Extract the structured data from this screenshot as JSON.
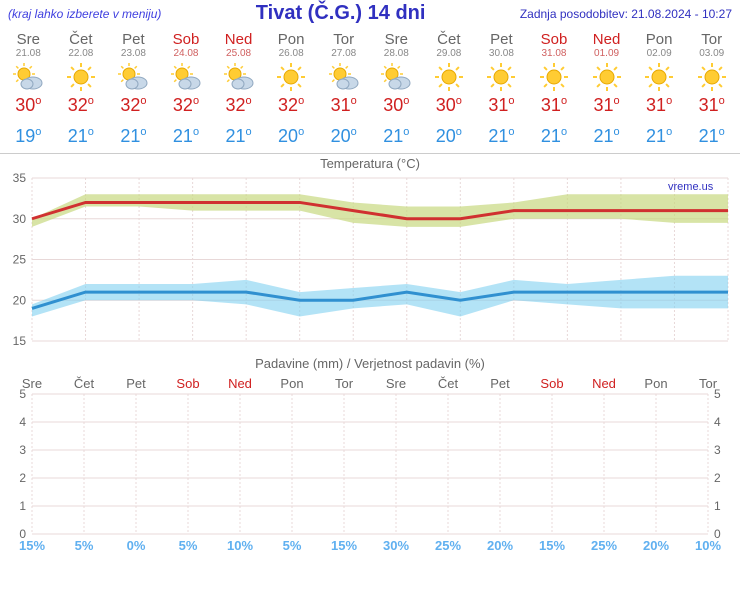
{
  "header": {
    "menu_note": "(kraj lahko izberete v meniju)",
    "title": "Tivat (Č.G.) 14 dni",
    "updated": "Zadnja posodobitev: 21.08.2024 - 10:27"
  },
  "days": [
    {
      "dow": "Sre",
      "date": "21.08",
      "hi": 30,
      "lo": 19,
      "icon": "sun-cloud",
      "weekend": false
    },
    {
      "dow": "Čet",
      "date": "22.08",
      "hi": 32,
      "lo": 21,
      "icon": "sun",
      "weekend": false
    },
    {
      "dow": "Pet",
      "date": "23.08",
      "hi": 32,
      "lo": 21,
      "icon": "sun-cloud",
      "weekend": false
    },
    {
      "dow": "Sob",
      "date": "24.08",
      "hi": 32,
      "lo": 21,
      "icon": "sun-cloud",
      "weekend": true
    },
    {
      "dow": "Ned",
      "date": "25.08",
      "hi": 32,
      "lo": 21,
      "icon": "sun-cloud",
      "weekend": true
    },
    {
      "dow": "Pon",
      "date": "26.08",
      "hi": 32,
      "lo": 20,
      "icon": "sun",
      "weekend": false
    },
    {
      "dow": "Tor",
      "date": "27.08",
      "hi": 31,
      "lo": 20,
      "icon": "sun-cloud",
      "weekend": false
    },
    {
      "dow": "Sre",
      "date": "28.08",
      "hi": 30,
      "lo": 21,
      "icon": "sun-cloud",
      "weekend": false
    },
    {
      "dow": "Čet",
      "date": "29.08",
      "hi": 30,
      "lo": 20,
      "icon": "sun",
      "weekend": false
    },
    {
      "dow": "Pet",
      "date": "30.08",
      "hi": 31,
      "lo": 21,
      "icon": "sun",
      "weekend": false
    },
    {
      "dow": "Sob",
      "date": "31.08",
      "hi": 31,
      "lo": 21,
      "icon": "sun",
      "weekend": true
    },
    {
      "dow": "Ned",
      "date": "01.09",
      "hi": 31,
      "lo": 21,
      "icon": "sun",
      "weekend": true
    },
    {
      "dow": "Pon",
      "date": "02.09",
      "hi": 31,
      "lo": 21,
      "icon": "sun",
      "weekend": false
    },
    {
      "dow": "Tor",
      "date": "03.09",
      "hi": 31,
      "lo": 21,
      "icon": "sun",
      "weekend": false
    }
  ],
  "temp_chart": {
    "title": "Temperatura (°C)",
    "ylim": [
      15,
      35
    ],
    "ytick_step": 5,
    "watermark": "vreme.us",
    "hi_series": [
      30,
      32,
      32,
      32,
      32,
      32,
      31,
      30,
      30,
      31,
      31,
      31,
      31,
      31
    ],
    "hi_upper": [
      30,
      33,
      33,
      33,
      33,
      33,
      32,
      31.5,
      31.5,
      32,
      33,
      33,
      33,
      33
    ],
    "hi_lower": [
      29,
      31.5,
      31.5,
      31,
      31,
      31,
      29.5,
      29,
      29,
      30,
      30,
      30,
      29.5,
      29.5
    ],
    "lo_series": [
      19,
      21,
      21,
      21,
      21,
      20,
      20,
      21,
      20,
      21,
      21,
      21,
      21,
      21
    ],
    "lo_upper": [
      19.5,
      22,
      22,
      22,
      22.5,
      21,
      21.5,
      22,
      21,
      22.5,
      22,
      22.5,
      23,
      23
    ],
    "lo_lower": [
      18,
      20,
      20,
      20,
      19.5,
      18,
      19,
      19.5,
      18,
      20,
      19.5,
      19,
      19,
      19
    ],
    "hi_color": "#d03030",
    "lo_color": "#3090d0",
    "hi_band_color": "#c8d880",
    "lo_band_color": "#80d0f0",
    "background": "#ffffff",
    "grid_color": "#e8d8d8"
  },
  "precip_chart": {
    "title": "Padavine (mm) / Verjetnost padavin (%)",
    "ylim": [
      0,
      5
    ],
    "ytick_step": 1,
    "prob": [
      15,
      5,
      0,
      5,
      10,
      5,
      15,
      30,
      25,
      20,
      15,
      25,
      20,
      10
    ],
    "prob_color": "#60b0f0"
  }
}
